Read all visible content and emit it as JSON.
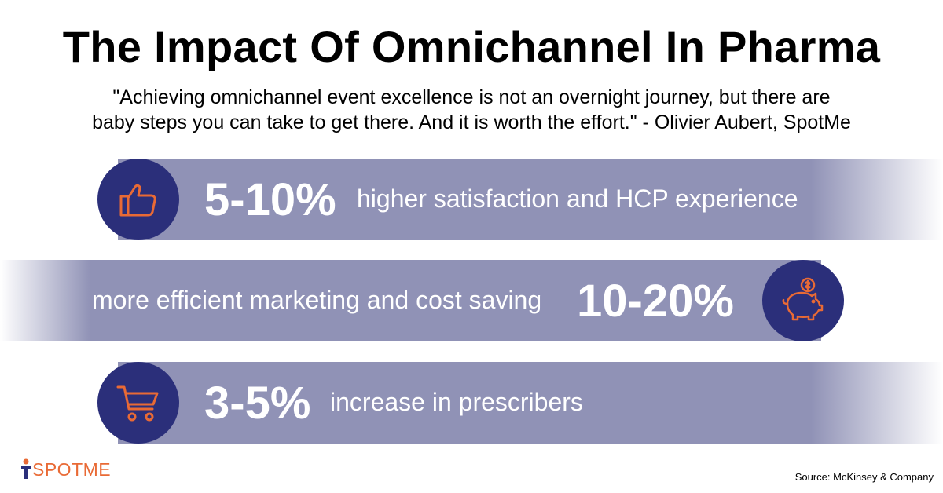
{
  "title": "The Impact Of Omnichannel In Pharma",
  "quote": {
    "line1": "\"Achieving omnichannel event excellence is not an overnight journey, but there are",
    "line2": "baby steps you can take to get there. And it is worth the effort.\" - Olivier Aubert, SpotMe"
  },
  "stats": [
    {
      "value": "5-10%",
      "description": "higher satisfaction and HCP experience",
      "icon": "thumbs-up-icon"
    },
    {
      "value": "10-20%",
      "description": "more efficient marketing and cost saving",
      "icon": "piggy-bank-icon"
    },
    {
      "value": "3-5%",
      "description": "increase in prescribers",
      "icon": "shopping-cart-icon"
    }
  ],
  "logo": {
    "text": "SPOTME"
  },
  "source": "Source: McKinsey & Company",
  "colors": {
    "band": "#9092b6",
    "circle": "#2b2f7a",
    "icon_accent": "#e96a35",
    "text_light": "#ffffff"
  }
}
